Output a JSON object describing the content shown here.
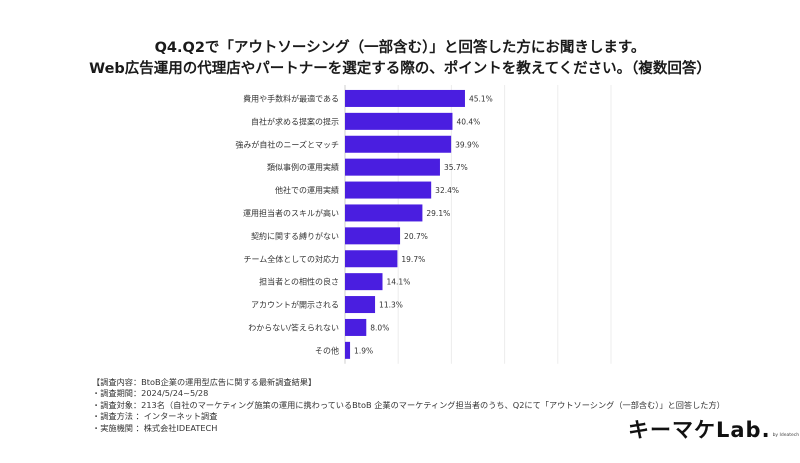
{
  "title_line1": "Q4.Q2で「アウトソーシング（一部含む）」と回答した方にお聞きします。",
  "title_line2": "Web広告運用の代理店やパートナーを選定する際の、ポイントを教えてください。（複数回答）",
  "chart_data": {
    "type": "bar",
    "orientation": "horizontal",
    "categories": [
      "費用や手数料が最適である",
      "自社が求める提案の提示",
      "強みが自社のニーズとマッチ",
      "類似事例の運用実績",
      "他社での運用実績",
      "運用担当者のスキルが高い",
      "契約に関する縛りがない",
      "チーム全体としての対応力",
      "担当者との相性の良さ",
      "アカウントが開示される",
      "わからない/答えられない",
      "その他"
    ],
    "values": [
      45.1,
      40.4,
      39.9,
      35.7,
      32.4,
      29.1,
      20.7,
      19.7,
      14.1,
      11.3,
      8.0,
      1.9
    ],
    "value_labels": [
      "45.1%",
      "40.4%",
      "39.9%",
      "35.7%",
      "32.4%",
      "29.1%",
      "20.7%",
      "19.7%",
      "14.1%",
      "11.3%",
      "8.0%",
      "1.9%"
    ],
    "xticks": [
      "0",
      "20",
      "40",
      "60",
      "80",
      "100"
    ],
    "xlim": [
      0,
      100
    ],
    "bar_color": "#4a1ee0",
    "grid": true
  },
  "notes": [
    "【調査内容：BtoB企業の運用型広告に関する最新調査結果】",
    "・調査期間：2024/5/24~5/28",
    "・調査対象：213名（自社のマーケティング施策の運用に携わっているBtoB 企業のマーケティング担当者のうち、Q2にて「アウトソーシング（一部含む）」と回答した方）",
    "・調査方法 ：インターネット調査",
    "・実施機関 ：株式会社IDEATECH"
  ],
  "logo": {
    "text": "キーマケLab.",
    "sub": "by Ideatech"
  }
}
